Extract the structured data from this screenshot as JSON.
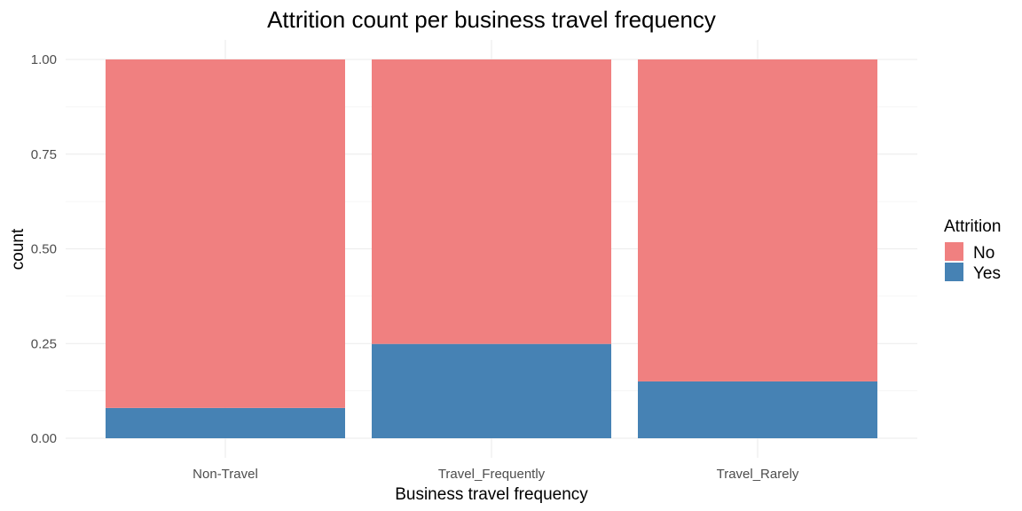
{
  "chart_data": {
    "type": "bar",
    "stacked": true,
    "position": "fill",
    "title": "Attrition count per business travel frequency",
    "xlabel": "Business travel frequency",
    "ylabel": "count",
    "categories": [
      "Non-Travel",
      "Travel_Frequently",
      "Travel_Rarely"
    ],
    "ylim": [
      0,
      1
    ],
    "yticks": [
      0,
      0.25,
      0.5,
      0.75,
      1
    ],
    "ytick_labels": [
      "0.00",
      "0.25",
      "0.50",
      "0.75",
      "1.00"
    ],
    "legend": {
      "title": "Attrition",
      "placement": "right"
    },
    "series": [
      {
        "name": "Yes",
        "color": "#4682B4",
        "values": [
          0.08,
          0.249,
          0.15
        ]
      },
      {
        "name": "No",
        "color": "#F08080",
        "values": [
          0.92,
          0.751,
          0.85
        ]
      }
    ],
    "legend_order": [
      "No",
      "Yes"
    ],
    "grid": true
  }
}
